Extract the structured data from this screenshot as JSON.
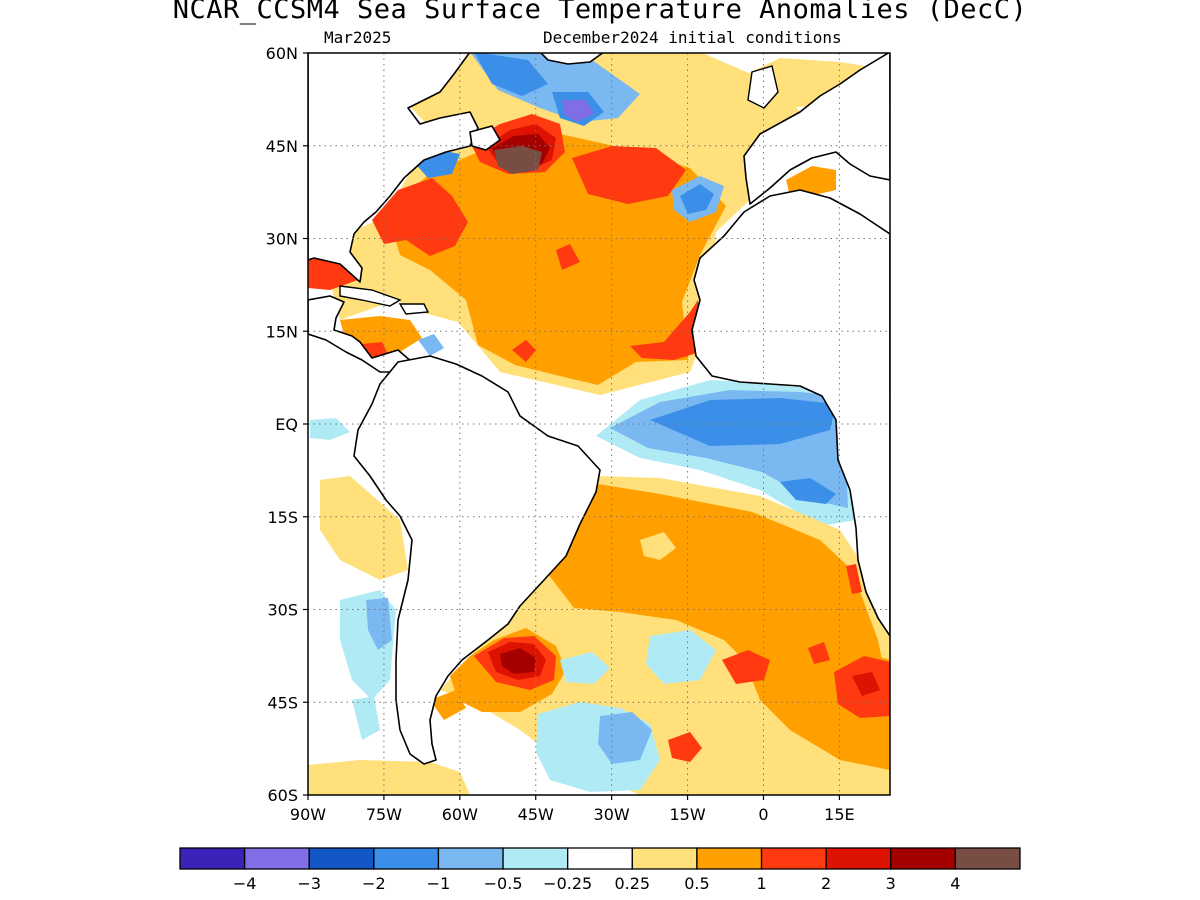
{
  "title": "NCAR_CCSM4 Sea Surface Temperature Anomalies (DecC)",
  "subtitle_left": "Mar2025",
  "subtitle_right": "December2024 initial conditions",
  "map": {
    "projection": "lat-lon",
    "region": "Atlantic Ocean",
    "lon_range": [
      -90,
      25
    ],
    "lat_range": [
      -60,
      60
    ],
    "lat_ticks": [
      {
        "value": 60,
        "label": "60N"
      },
      {
        "value": 45,
        "label": "45N"
      },
      {
        "value": 30,
        "label": "30N"
      },
      {
        "value": 15,
        "label": "15N"
      },
      {
        "value": 0,
        "label": "EQ"
      },
      {
        "value": -15,
        "label": "15S"
      },
      {
        "value": -30,
        "label": "30S"
      },
      {
        "value": -45,
        "label": "45S"
      },
      {
        "value": -60,
        "label": "60S"
      }
    ],
    "lon_ticks": [
      {
        "value": -90,
        "label": "90W"
      },
      {
        "value": -75,
        "label": "75W"
      },
      {
        "value": -60,
        "label": "60W"
      },
      {
        "value": -45,
        "label": "45W"
      },
      {
        "value": -30,
        "label": "30W"
      },
      {
        "value": -15,
        "label": "15W"
      },
      {
        "value": 0,
        "label": "0"
      },
      {
        "value": 15,
        "label": "15E"
      }
    ],
    "grid": "dotted"
  },
  "colorbar": {
    "colors": [
      "#3b22b8",
      "#7f6ee6",
      "#1356c7",
      "#3c8fe8",
      "#7ab8f2",
      "#b0ebf5",
      "#ffffff",
      "#ffe07a",
      "#ffa000",
      "#ff3a10",
      "#dd1200",
      "#a50000",
      "#784e44"
    ],
    "labels": [
      "−4",
      "−3",
      "−2",
      "−1",
      "−0.5",
      "−0.25",
      "0.25",
      "0.5",
      "1",
      "2",
      "3",
      "4"
    ]
  }
}
